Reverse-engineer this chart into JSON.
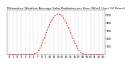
{
  "title": "Milwaukee Weather Average Solar Radiation per Hour W/m2 (Last 24 Hours)",
  "hours": [
    0,
    1,
    2,
    3,
    4,
    5,
    6,
    7,
    8,
    9,
    10,
    11,
    12,
    13,
    14,
    15,
    16,
    17,
    18,
    19,
    20,
    21,
    22,
    23
  ],
  "values": [
    0,
    0,
    0,
    0,
    0,
    0,
    2,
    25,
    120,
    260,
    390,
    480,
    510,
    490,
    400,
    290,
    160,
    55,
    8,
    0,
    0,
    0,
    0,
    0
  ],
  "line_color": "#ff0000",
  "bg_color": "#ffffff",
  "grid_color": "#999999",
  "ylim": [
    0,
    560
  ],
  "xlim": [
    -0.5,
    23.5
  ],
  "ylabel_values": [
    100,
    200,
    300,
    400,
    500
  ],
  "tick_fontsize": 2.8,
  "title_fontsize": 3.2
}
